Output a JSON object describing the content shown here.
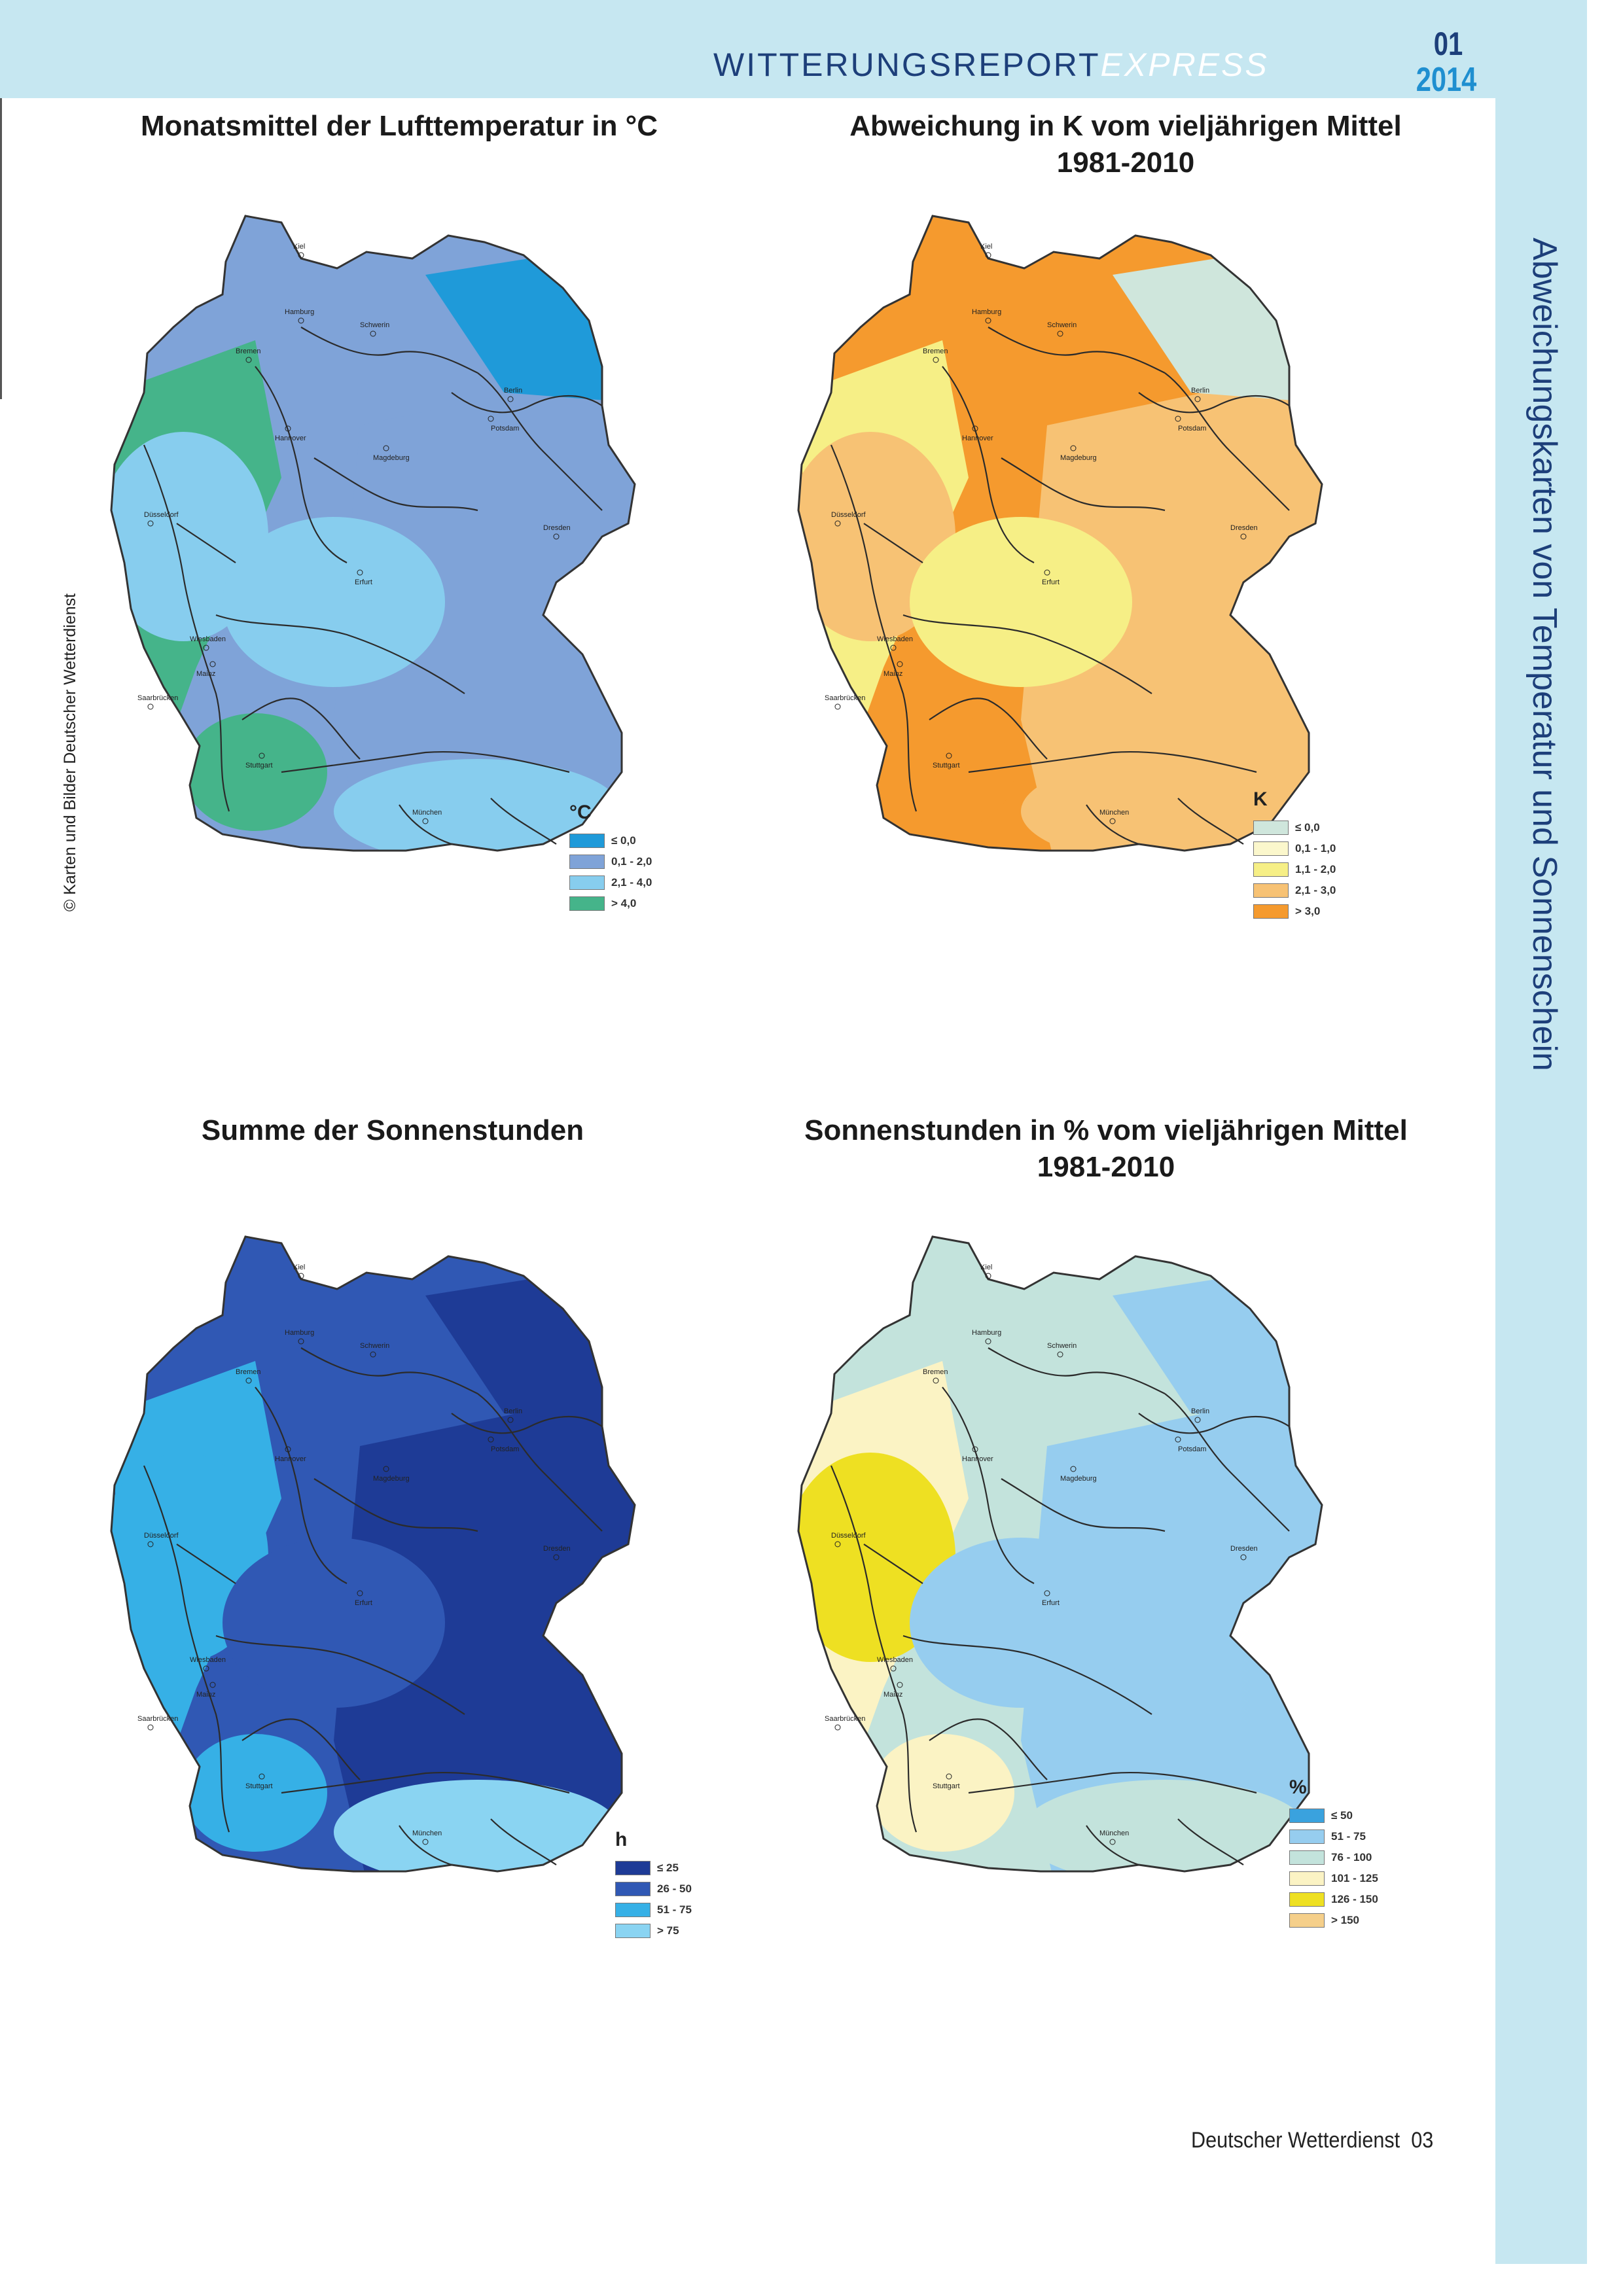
{
  "header": {
    "title_main": "WITTERUNGSREPORT",
    "title_express": "EXPRESS",
    "issue_number": "01",
    "issue_year": "2014"
  },
  "side_title": "Abweichungskarten von Temperatur und Sonnenschein",
  "copyright": "© Karten und Bilder Deutscher Wetterdienst",
  "city_labels": {
    "kiel": "Kiel",
    "hamburg": "Hamburg",
    "schwerin": "Schwerin",
    "bremen": "Bremen",
    "berlin": "Berlin",
    "potsdam": "Potsdam",
    "hannover": "Hannover",
    "magdeburg": "Magdeburg",
    "duesseldorf": "Düsseldorf",
    "dresden": "Dresden",
    "erfurt": "Erfurt",
    "wiesbaden": "Wiesbaden",
    "mainz": "Mainz",
    "saarbruecken": "Saarbrücken",
    "stuttgart": "Stuttgart",
    "muenchen": "München"
  },
  "maps": [
    {
      "title_line1": "Monatsmittel der Lufttemperatur in °C",
      "title_line2": "",
      "legend_unit": "°C",
      "legend": [
        {
          "label": "≤ 0,0",
          "color": "#1f9ad9"
        },
        {
          "label": "0,1 - 2,0",
          "color": "#7fa3d8"
        },
        {
          "label": "2,1 - 4,0",
          "color": "#87cdee"
        },
        {
          "label": "> 4,0",
          "color": "#45b48a"
        }
      ]
    },
    {
      "title_line1": "Abweichung in K vom vieljährigen Mittel",
      "title_line2": "1981-2010",
      "legend_unit": "K",
      "legend": [
        {
          "label": "≤ 0,0",
          "color": "#cfe6dc"
        },
        {
          "label": "0,1 - 1,0",
          "color": "#fbf7cc"
        },
        {
          "label": "1,1 - 2,0",
          "color": "#f6ef86"
        },
        {
          "label": "2,1 - 3,0",
          "color": "#f7c274"
        },
        {
          "label": "> 3,0",
          "color": "#f59a2e"
        }
      ]
    },
    {
      "title_line1": "Summe der Sonnenstunden",
      "title_line2": "",
      "legend_unit": "h",
      "legend": [
        {
          "label": "≤ 25",
          "color": "#1e3b96"
        },
        {
          "label": "26 - 50",
          "color": "#3058b4"
        },
        {
          "label": "51 - 75",
          "color": "#36b0e6"
        },
        {
          "label": "> 75",
          "color": "#8ad4f2"
        }
      ]
    },
    {
      "title_line1": "Sonnenstunden in % vom vieljährigen Mittel",
      "title_line2": "1981-2010",
      "legend_unit": "%",
      "legend": [
        {
          "label": "≤ 50",
          "color": "#3aa2de"
        },
        {
          "label": "51 - 75",
          "color": "#96cdef"
        },
        {
          "label": "76 - 100",
          "color": "#c3e3dc"
        },
        {
          "label": "101 - 125",
          "color": "#fbf3c4"
        },
        {
          "label": "126 - 150",
          "color": "#eee022"
        },
        {
          "label": "> 150",
          "color": "#f5cf8a"
        }
      ]
    }
  ],
  "footer": {
    "publisher": "Deutscher Wetterdienst",
    "page_number": "03"
  }
}
